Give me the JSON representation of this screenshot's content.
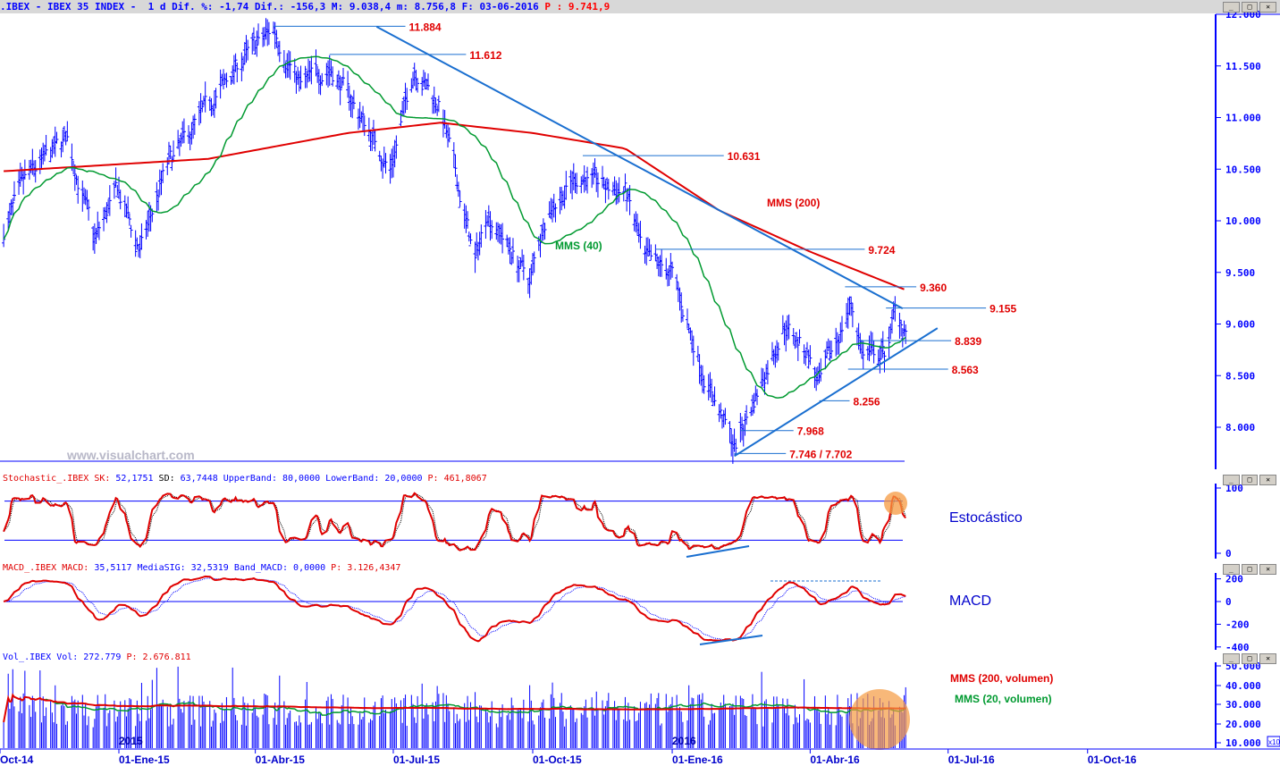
{
  "header": {
    "symbol": ".IBEX",
    "name": "IBEX 35 INDEX",
    "period": "1 d",
    "dif_pct": "-1,74",
    "dif": "-156,3",
    "max": "9.038,4",
    "min": "8.756,8",
    "date": "03-06-2016",
    "p": "9.741,9"
  },
  "watermark": "www.visualchart.com",
  "window_buttons": [
    "minimize-icon",
    "maximize-icon",
    "close-icon"
  ],
  "chart_data": [
    {
      "type": "ohlc",
      "pane": "price",
      "colors": {
        "bars": "#0000ff",
        "mms200": "#e00000",
        "mms40": "#009a30",
        "trend": "#1a6fd0"
      },
      "yticks": [
        12000,
        11500,
        11000,
        10500,
        10000,
        9500,
        9000,
        8500,
        8000
      ],
      "ytick_labels": [
        "12.000",
        "11.500",
        "11.000",
        "10.500",
        "10.000",
        "9.500",
        "9.000",
        "8.500",
        "8.000"
      ],
      "xtick_dates": [
        "2014-10-01",
        "2015-01-01",
        "2015-04-01",
        "2015-07-01",
        "2015-10-01",
        "2016-01-01",
        "2016-04-01",
        "2016-07-01",
        "2016-10-01"
      ],
      "xtick_labels": [
        "Oct-14",
        "01-Ene-15",
        "01-Abr-15",
        "01-Jul-15",
        "01-Oct-15",
        "01-Ene-16",
        "01-Abr-16",
        "01-Jul-16",
        "01-Oct-16"
      ],
      "close_approx": [
        [
          "2014-10-17",
          9900
        ],
        [
          "2014-11-01",
          10400
        ],
        [
          "2014-11-28",
          10800
        ],
        [
          "2014-12-16",
          9800
        ],
        [
          "2014-12-31",
          10300
        ],
        [
          "2015-01-15",
          9700
        ],
        [
          "2015-02-01",
          10500
        ],
        [
          "2015-03-01",
          11100
        ],
        [
          "2015-03-20",
          11500
        ],
        [
          "2015-04-13",
          11860
        ],
        [
          "2015-05-01",
          11300
        ],
        [
          "2015-05-20",
          11500
        ],
        [
          "2015-06-10",
          11000
        ],
        [
          "2015-06-29",
          10500
        ],
        [
          "2015-07-15",
          11500
        ],
        [
          "2015-08-01",
          11100
        ],
        [
          "2015-08-24",
          9600
        ],
        [
          "2015-09-01",
          10100
        ],
        [
          "2015-09-29",
          9400
        ],
        [
          "2015-10-10",
          10100
        ],
        [
          "2015-11-01",
          10450
        ],
        [
          "2015-11-20",
          10300
        ],
        [
          "2015-12-01",
          10300
        ],
        [
          "2015-12-14",
          9600
        ],
        [
          "2015-12-31",
          9500
        ],
        [
          "2016-01-20",
          8600
        ],
        [
          "2016-02-11",
          7800
        ],
        [
          "2016-02-25",
          8300
        ],
        [
          "2016-03-15",
          9000
        ],
        [
          "2016-03-31",
          8700
        ],
        [
          "2016-04-07",
          8400
        ],
        [
          "2016-04-28",
          9200
        ],
        [
          "2016-05-06",
          8700
        ],
        [
          "2016-05-20",
          8700
        ],
        [
          "2016-05-27",
          9100
        ],
        [
          "2016-06-03",
          8950
        ]
      ],
      "mms200_approx": [
        [
          "2014-10-17",
          10480
        ],
        [
          "2015-03-01",
          10600
        ],
        [
          "2015-06-01",
          10850
        ],
        [
          "2015-08-01",
          10950
        ],
        [
          "2015-10-01",
          10850
        ],
        [
          "2015-12-01",
          10700
        ],
        [
          "2016-02-01",
          10100
        ],
        [
          "2016-04-01",
          9700
        ],
        [
          "2016-06-03",
          9330
        ]
      ],
      "series_labels": {
        "mms200": "MMS (200)",
        "mms40": "MMS (40)"
      },
      "levels": [
        {
          "value": 11884,
          "label": "11.884",
          "from": "2015-04-13",
          "to": "2015-07-09"
        },
        {
          "value": 11612,
          "label": "11.612",
          "from": "2015-05-20",
          "to": "2015-08-18"
        },
        {
          "value": 10631,
          "label": "10.631",
          "from": "2015-11-03",
          "to": "2016-02-04"
        },
        {
          "value": 9724,
          "label": "9.724",
          "from": "2015-12-21",
          "to": "2016-05-07"
        },
        {
          "value": 9360,
          "label": "9.360",
          "from": "2016-04-24",
          "to": "2016-06-10"
        },
        {
          "value": 9155,
          "label": "9.155",
          "from": "2016-05-21",
          "to": "2016-07-26"
        },
        {
          "value": 8839,
          "label": "8.839",
          "from": "2016-05-03",
          "to": "2016-07-03"
        },
        {
          "value": 8563,
          "label": "8.563",
          "from": "2016-04-26",
          "to": "2016-07-01"
        },
        {
          "value": 8256,
          "label": "8.256",
          "from": "2016-04-07",
          "to": "2016-04-27"
        },
        {
          "value": 7968,
          "label": "7.968",
          "from": "2016-02-15",
          "to": "2016-03-21"
        },
        {
          "value": 7746,
          "label": "7.746 / 7.702",
          "from": "2016-02-11",
          "to": "2016-03-16"
        }
      ],
      "trendlines": [
        [
          [
            "2015-06-20",
            11880
          ],
          [
            "2016-06-01",
            9150
          ]
        ],
        [
          [
            "2016-02-11",
            7720
          ],
          [
            "2016-06-24",
            8960
          ]
        ]
      ]
    },
    {
      "type": "line",
      "pane": "stochastic",
      "title": "Stochastic_.IBEX",
      "sk_label": "SK:",
      "sk": "52,1751",
      "sd_label": "SD:",
      "sd": "63,7448",
      "ub_label": "UpperBand:",
      "upper": "80,0000",
      "lb_label": "LowerBand:",
      "lower": "20,0000",
      "p_label": "P:",
      "p": "461,8067",
      "bands": [
        80,
        20
      ],
      "ylim": [
        0,
        100
      ],
      "ytick_labels": [
        "100",
        "0"
      ],
      "annotation": "Estocástico"
    },
    {
      "type": "line",
      "pane": "macd",
      "title": "MACD_.IBEX",
      "macd_label": "MACD:",
      "macd": "35,5117",
      "sig_label": "MediaSIG:",
      "sig": "32,5319",
      "band_label": "Band_MACD:",
      "band": "0,0000",
      "p_label": "P:",
      "p": "3.126,4347",
      "ylim": [
        -400,
        200
      ],
      "ytick_labels": [
        "200",
        "0",
        "-200",
        "-400"
      ],
      "annotation": "MACD"
    },
    {
      "type": "bar",
      "pane": "volume",
      "title": "Vol_.IBEX",
      "vol_label": "Vol:",
      "vol": "272.779",
      "p_label": "P:",
      "p": "2.676.811",
      "ytick_labels": [
        "50.000",
        "40.000",
        "30.000",
        "20.000",
        "10.000"
      ],
      "multiplier": "x10",
      "year_labels": [
        "2015",
        "2016"
      ],
      "mms200_label": "MMS (200, volumen)",
      "mms20_label": "MMS (20, volumen)"
    }
  ]
}
